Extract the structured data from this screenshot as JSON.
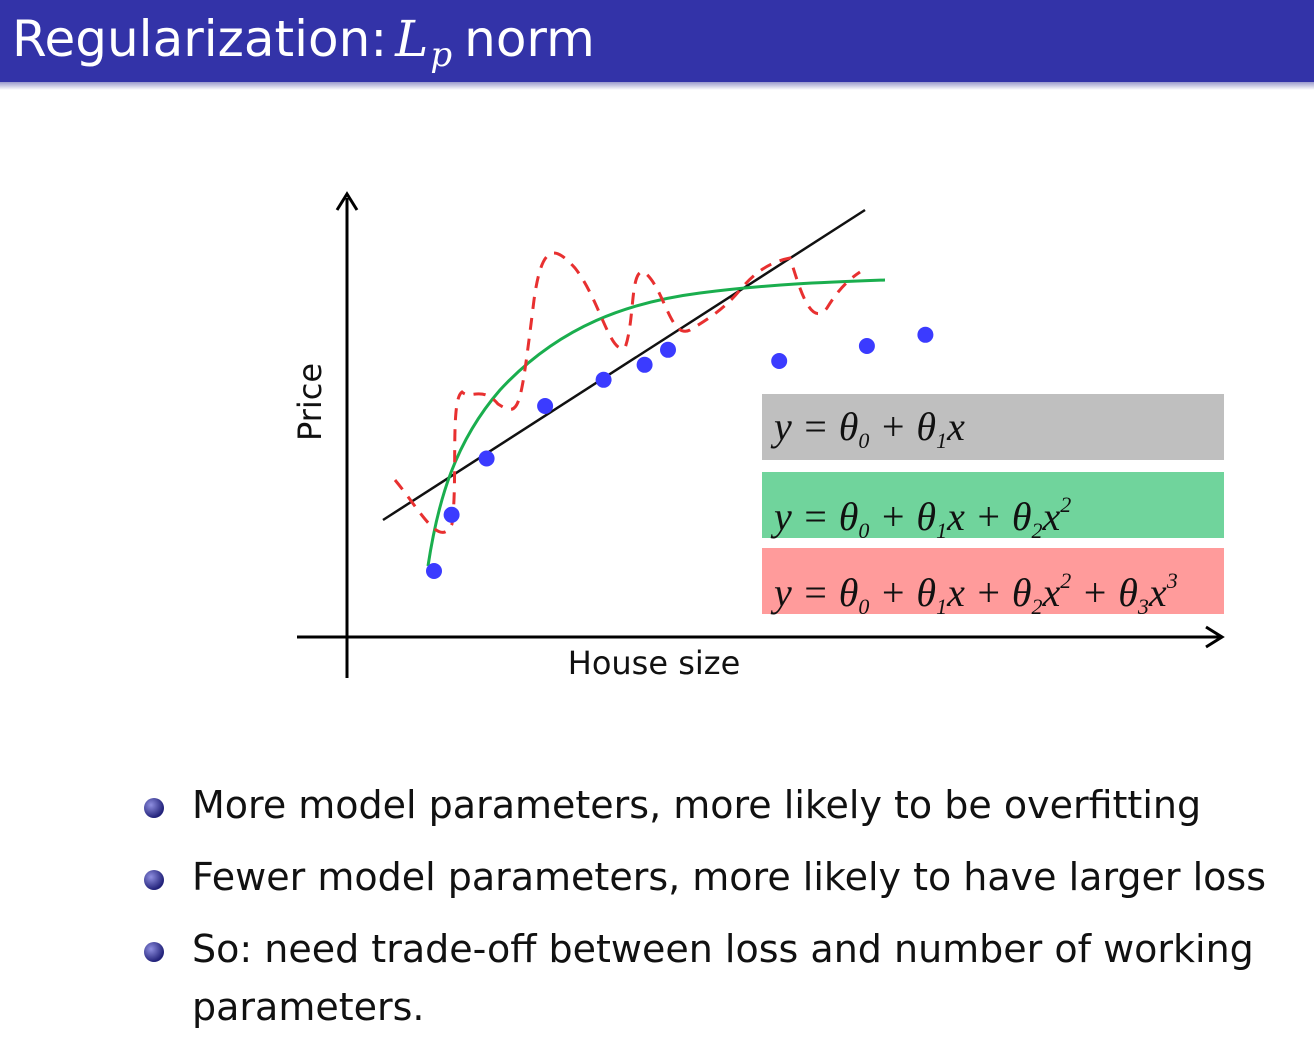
{
  "title": {
    "text": "Regularization:",
    "math_var": "L",
    "math_sub": "p",
    "rest": "norm"
  },
  "chart_data": {
    "type": "scatter",
    "xlabel": "House size",
    "ylabel": "Price",
    "points_x": [
      1.0,
      1.3,
      1.9,
      2.9,
      3.9,
      4.6,
      5.0,
      6.9,
      8.4,
      9.4
    ],
    "points_y": [
      2.2,
      3.7,
      5.2,
      6.6,
      7.3,
      7.7,
      8.1,
      7.8,
      8.2,
      8.5
    ],
    "curves": [
      {
        "label": "linear",
        "color": "#111111"
      },
      {
        "label": "quadratic",
        "color": "#1aae4e"
      },
      {
        "label": "cubic",
        "color": "#e83030"
      }
    ],
    "colors": {
      "points": "#3b3bff"
    }
  },
  "equations": {
    "eq1": {
      "y": "y",
      "eq": " = ",
      "t": "θ",
      "s0": "0",
      "plus": " + ",
      "s1": "1",
      "x": "x"
    },
    "eq2": {
      "s0": "0",
      "s1": "1",
      "s2": "2",
      "p2": "2"
    },
    "eq3": {
      "s0": "0",
      "s1": "1",
      "s2": "2",
      "p2": "2",
      "s3": "3",
      "p3": "3"
    }
  },
  "bullets": [
    "More model parameters, more likely to be overfitting",
    "Fewer model parameters, more likely to have larger loss",
    "So: need trade-off between loss and number of working parameters."
  ]
}
